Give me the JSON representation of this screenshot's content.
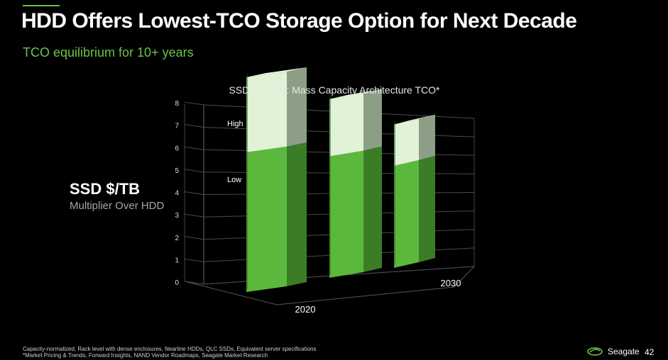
{
  "slide": {
    "title": "HDD Offers Lowest-TCO Storage Option for Next Decade",
    "subtitle": "TCO equilibrium for 10+ years",
    "side_label": "SSD $/TB",
    "side_sub": "Multiplier Over HDD",
    "footnote_1": "Capacity-normalized, Rack level with dense enclosures, Nearline HDDs, QLC SSDs, Equivalent server specifications",
    "footnote_2": "*Market Pricing & Trends, Forward Insights, NAND Vendor Roadmaps, Seagate Market Research",
    "brand": "Seagate",
    "page_number": "42",
    "colors": {
      "accent": "#6cc24a",
      "low_front": "#5cb83d",
      "low_side": "#3b7d27",
      "high_front": "#e1f3d7",
      "high_side": "#8c9f86"
    }
  },
  "chart_data": {
    "type": "bar",
    "title": "SSD vs HDD: Mass Capacity Architecture TCO*",
    "ylabel": "SSD $/TB Multiplier Over HDD",
    "ylim": [
      0,
      8
    ],
    "yticks": [
      "0",
      "1",
      "2",
      "3",
      "4",
      "5",
      "6",
      "7",
      "8"
    ],
    "categories": [
      "2020",
      "",
      "2030"
    ],
    "series": [
      {
        "name": "Low",
        "values": [
          4.75,
          4.45,
          4.2
        ]
      },
      {
        "name": "High",
        "values": [
          7.3,
          6.55,
          5.9
        ]
      }
    ],
    "annotations": [
      "High",
      "Low"
    ]
  }
}
